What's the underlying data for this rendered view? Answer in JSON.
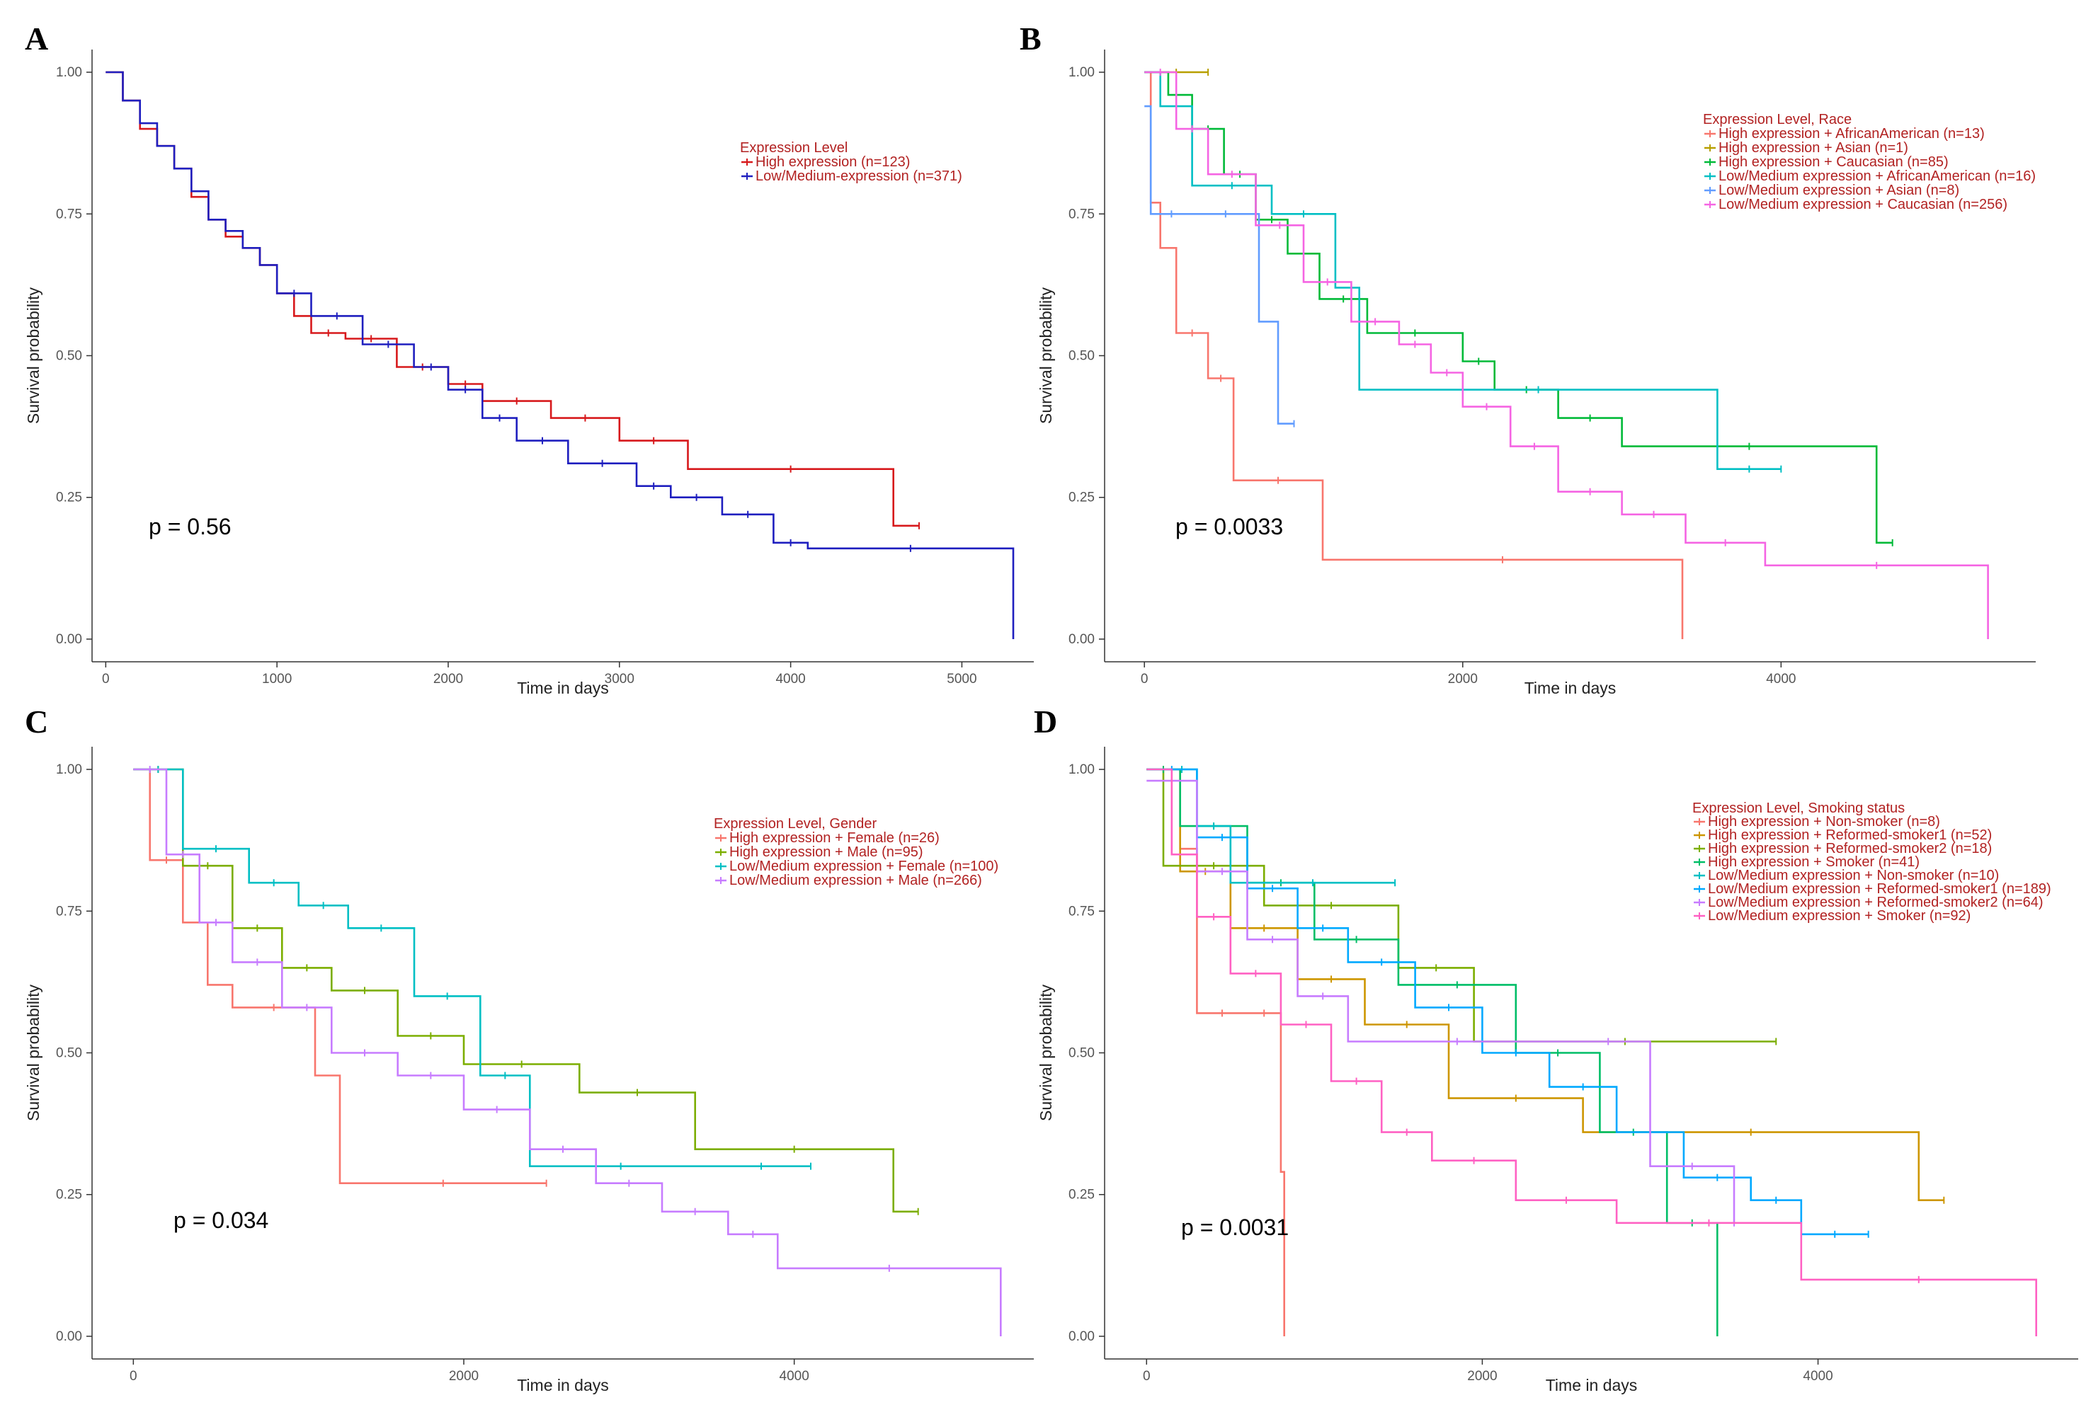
{
  "chart_data": [
    {
      "panel": "A",
      "type": "line",
      "subtype": "kaplan-meier",
      "xlabel": "Time in days",
      "ylabel": "Survival probability",
      "xlim": [
        -80,
        5420
      ],
      "ylim": [
        -0.04,
        1.04
      ],
      "xticks": [
        0,
        1000,
        2000,
        3000,
        4000,
        5000
      ],
      "xtick_labels": [
        "0",
        "1000",
        "2000",
        "3000",
        "4000",
        "5000"
      ],
      "yticks": [
        0,
        0.25,
        0.5,
        0.75,
        1.0
      ],
      "ytick_labels": [
        "0.00",
        "0.25",
        "0.50",
        "0.75",
        "1.00"
      ],
      "legend_title": "Expression Level",
      "legend_position": "top-right",
      "p_value": "p = 0.56",
      "series": [
        {
          "name": "High expression (n=123)",
          "color": "#d7191c",
          "x": [
            0,
            100,
            200,
            300,
            400,
            500,
            600,
            700,
            800,
            900,
            1000,
            1100,
            1200,
            1400,
            1700,
            2000,
            2200,
            2600,
            3000,
            3400,
            4600,
            4750
          ],
          "y": [
            1.0,
            0.95,
            0.9,
            0.87,
            0.83,
            0.78,
            0.74,
            0.71,
            0.69,
            0.66,
            0.61,
            0.57,
            0.54,
            0.53,
            0.48,
            0.45,
            0.42,
            0.39,
            0.35,
            0.3,
            0.2,
            0.2
          ]
        },
        {
          "name": "Low/Medium-expression (n=371)",
          "color": "#1f1fbf",
          "x": [
            0,
            100,
            200,
            300,
            400,
            500,
            600,
            700,
            800,
            900,
            1000,
            1200,
            1500,
            1800,
            2000,
            2200,
            2400,
            2700,
            3100,
            3300,
            3600,
            3900,
            4100,
            5300,
            5300
          ],
          "y": [
            1.0,
            0.95,
            0.91,
            0.87,
            0.83,
            0.79,
            0.74,
            0.72,
            0.69,
            0.66,
            0.61,
            0.57,
            0.52,
            0.48,
            0.44,
            0.39,
            0.35,
            0.31,
            0.27,
            0.25,
            0.22,
            0.17,
            0.16,
            0.16,
            0.0
          ]
        }
      ]
    },
    {
      "panel": "B",
      "type": "line",
      "subtype": "kaplan-meier",
      "xlabel": "Time in days",
      "ylabel": "Survival probability",
      "xlim": [
        -250,
        5600
      ],
      "ylim": [
        -0.04,
        1.04
      ],
      "xticks": [
        0,
        2000,
        4000
      ],
      "xtick_labels": [
        "0",
        "2000",
        "4000"
      ],
      "yticks": [
        0,
        0.25,
        0.5,
        0.75,
        1.0
      ],
      "ytick_labels": [
        "0.00",
        "0.25",
        "0.50",
        "0.75",
        "1.00"
      ],
      "legend_title": "Expression Level, Race",
      "legend_position": "top-right",
      "p_value": "p = 0.0033",
      "series": [
        {
          "name": "High expression + AfricanAmerican (n=13)",
          "color": "#f8766d",
          "x": [
            0,
            40,
            100,
            200,
            400,
            560,
            1120,
            3380,
            3380
          ],
          "y": [
            1.0,
            0.77,
            0.69,
            0.54,
            0.46,
            0.28,
            0.14,
            0.14,
            0.0
          ]
        },
        {
          "name": "High expression + Asian (n=1)",
          "color": "#b79f00",
          "x": [
            0,
            400
          ],
          "y": [
            1.0,
            1.0
          ]
        },
        {
          "name": "High expression + Caucasian (n=85)",
          "color": "#00ba38",
          "x": [
            0,
            150,
            300,
            500,
            700,
            900,
            1100,
            1400,
            2000,
            2200,
            2600,
            3000,
            4600,
            4700
          ],
          "y": [
            1.0,
            0.96,
            0.9,
            0.82,
            0.74,
            0.68,
            0.6,
            0.54,
            0.49,
            0.44,
            0.39,
            0.34,
            0.17,
            0.17
          ]
        },
        {
          "name": "Low/Medium expression + AfricanAmerican (n=16)",
          "color": "#00bfc4",
          "x": [
            0,
            100,
            300,
            800,
            1200,
            1350,
            3600,
            4000
          ],
          "y": [
            1.0,
            0.94,
            0.8,
            0.75,
            0.62,
            0.44,
            0.3,
            0.3
          ]
        },
        {
          "name": "Low/Medium expression + Asian (n=8)",
          "color": "#619cff",
          "x": [
            0,
            40,
            300,
            720,
            840,
            940
          ],
          "y": [
            0.94,
            0.75,
            0.75,
            0.56,
            0.38,
            0.38
          ]
        },
        {
          "name": "Low/Medium expression + Caucasian (n=256)",
          "color": "#f564e3",
          "x": [
            0,
            200,
            400,
            700,
            1000,
            1300,
            1600,
            1800,
            2000,
            2300,
            2600,
            3000,
            3400,
            3900,
            5300,
            5300
          ],
          "y": [
            1.0,
            0.9,
            0.82,
            0.73,
            0.63,
            0.56,
            0.52,
            0.47,
            0.41,
            0.34,
            0.26,
            0.22,
            0.17,
            0.13,
            0.13,
            0.0
          ]
        }
      ]
    },
    {
      "panel": "C",
      "type": "line",
      "subtype": "kaplan-meier",
      "xlabel": "Time in days",
      "ylabel": "Survival probability",
      "xlim": [
        -250,
        5450
      ],
      "ylim": [
        -0.04,
        1.04
      ],
      "xticks": [
        0,
        2000,
        4000
      ],
      "xtick_labels": [
        "0",
        "2000",
        "4000"
      ],
      "yticks": [
        0,
        0.25,
        0.5,
        0.75,
        1.0
      ],
      "ytick_labels": [
        "0.00",
        "0.25",
        "0.50",
        "0.75",
        "1.00"
      ],
      "legend_title": "Expression Level, Gender",
      "legend_position": "top-right",
      "p_value": "p = 0.034",
      "series": [
        {
          "name": "High expression + Female (n=26)",
          "color": "#f8766d",
          "x": [
            0,
            100,
            300,
            450,
            600,
            1100,
            1250,
            2500
          ],
          "y": [
            1.0,
            0.84,
            0.73,
            0.62,
            0.58,
            0.46,
            0.27,
            0.27
          ]
        },
        {
          "name": "High expression + Male (n=95)",
          "color": "#7cae00",
          "x": [
            0,
            300,
            600,
            900,
            1200,
            1600,
            2000,
            2700,
            3400,
            4600,
            4750
          ],
          "y": [
            1.0,
            0.83,
            0.72,
            0.65,
            0.61,
            0.53,
            0.48,
            0.43,
            0.33,
            0.22,
            0.22
          ]
        },
        {
          "name": "Low/Medium expression + Female (n=100)",
          "color": "#00bfc4",
          "x": [
            0,
            300,
            700,
            1000,
            1300,
            1700,
            2100,
            2400,
            3500,
            4100
          ],
          "y": [
            1.0,
            0.86,
            0.8,
            0.76,
            0.72,
            0.6,
            0.46,
            0.3,
            0.3,
            0.3
          ]
        },
        {
          "name": "Low/Medium expression + Male (n=266)",
          "color": "#c77cff",
          "x": [
            0,
            200,
            400,
            600,
            900,
            1200,
            1600,
            2000,
            2400,
            2800,
            3200,
            3600,
            3900,
            5250,
            5250
          ],
          "y": [
            1.0,
            0.85,
            0.73,
            0.66,
            0.58,
            0.5,
            0.46,
            0.4,
            0.33,
            0.27,
            0.22,
            0.18,
            0.12,
            0.12,
            0.0
          ]
        }
      ]
    },
    {
      "panel": "D",
      "type": "line",
      "subtype": "kaplan-meier",
      "xlabel": "Time in days",
      "ylabel": "Survival probability",
      "xlim": [
        -250,
        5550
      ],
      "ylim": [
        -0.04,
        1.04
      ],
      "xticks": [
        0,
        2000,
        4000
      ],
      "xtick_labels": [
        "0",
        "2000",
        "4000"
      ],
      "yticks": [
        0,
        0.25,
        0.5,
        0.75,
        1.0
      ],
      "ytick_labels": [
        "0.00",
        "0.25",
        "0.50",
        "0.75",
        "1.00"
      ],
      "legend_title": "Expression Level, Smoking status",
      "legend_position": "top-right",
      "p_value": "p = 0.0031",
      "series": [
        {
          "name": "High expression + Non-smoker (n=8)",
          "color": "#f8766d",
          "x": [
            0,
            200,
            300,
            600,
            800,
            820,
            820
          ],
          "y": [
            1.0,
            0.86,
            0.57,
            0.57,
            0.29,
            0.29,
            0.0
          ]
        },
        {
          "name": "High expression + Reformed-smoker1 (n=52)",
          "color": "#cd9600",
          "x": [
            0,
            200,
            500,
            900,
            1300,
            1800,
            2600,
            4600,
            4750
          ],
          "y": [
            1.0,
            0.82,
            0.72,
            0.63,
            0.55,
            0.42,
            0.36,
            0.24,
            0.24
          ]
        },
        {
          "name": "High expression + Reformed-smoker2 (n=18)",
          "color": "#7cae00",
          "x": [
            0,
            100,
            700,
            1500,
            1950,
            3750
          ],
          "y": [
            1.0,
            0.83,
            0.76,
            0.65,
            0.52,
            0.52
          ]
        },
        {
          "name": "High expression + Smoker (n=41)",
          "color": "#00be67",
          "x": [
            0,
            200,
            600,
            1000,
            1500,
            2200,
            2700,
            3100,
            3400,
            3400
          ],
          "y": [
            1.0,
            0.9,
            0.8,
            0.7,
            0.62,
            0.5,
            0.36,
            0.2,
            0.2,
            0.0
          ]
        },
        {
          "name": "Low/Medium expression + Non-smoker (n=10)",
          "color": "#00bfc4",
          "x": [
            0,
            120,
            300,
            500,
            1480
          ],
          "y": [
            1.0,
            1.0,
            0.9,
            0.8,
            0.8
          ]
        },
        {
          "name": "Low/Medium expression + Reformed-smoker1 (n=189)",
          "color": "#00a9ff",
          "x": [
            0,
            300,
            600,
            900,
            1200,
            1600,
            2000,
            2400,
            2800,
            3200,
            3600,
            3900,
            4300
          ],
          "y": [
            1.0,
            0.88,
            0.79,
            0.72,
            0.66,
            0.58,
            0.5,
            0.44,
            0.36,
            0.28,
            0.24,
            0.18,
            0.18
          ]
        },
        {
          "name": "Low/Medium expression + Reformed-smoker2 (n=64)",
          "color": "#c77cff",
          "x": [
            0,
            300,
            600,
            900,
            1200,
            2500,
            3000,
            3500
          ],
          "y": [
            0.98,
            0.82,
            0.7,
            0.6,
            0.52,
            0.52,
            0.3,
            0.2
          ]
        },
        {
          "name": "Low/Medium expression + Smoker (n=92)",
          "color": "#ff61c3",
          "x": [
            0,
            150,
            300,
            500,
            800,
            1100,
            1400,
            1700,
            2200,
            2800,
            3900,
            5300,
            5300
          ],
          "y": [
            1.0,
            0.85,
            0.74,
            0.64,
            0.55,
            0.45,
            0.36,
            0.31,
            0.24,
            0.2,
            0.1,
            0.1,
            0.0
          ]
        }
      ]
    }
  ]
}
